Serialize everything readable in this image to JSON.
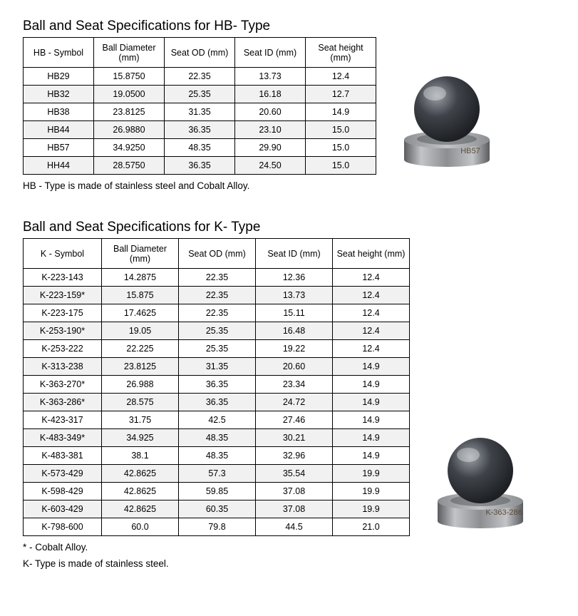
{
  "colors": {
    "text": "#000000",
    "border": "#000000",
    "row_alt_bg": "#f1f1f1",
    "page_bg": "#ffffff",
    "ball_top": "#9aa0a6",
    "ball_mid": "#3f4349",
    "ball_dark": "#1e2024",
    "seat_top": "#c2c4c7",
    "seat_mid": "#8c8e91",
    "seat_dark": "#5a5c5f",
    "label_text": "#5a4a3a"
  },
  "hb": {
    "title": "Ball and Seat Specifications for HB- Type",
    "columns": [
      "HB - Symbol",
      "Ball Diameter (mm)",
      "Seat OD (mm)",
      "Seat ID (mm)",
      "Seat height (mm)"
    ],
    "rows": [
      [
        "HB29",
        "15.8750",
        "22.35",
        "13.73",
        "12.4"
      ],
      [
        "HB32",
        "19.0500",
        "25.35",
        "16.18",
        "12.7"
      ],
      [
        "HB38",
        "23.8125",
        "31.35",
        "20.60",
        "14.9"
      ],
      [
        "HB44",
        "26.9880",
        "36.35",
        "23.10",
        "15.0"
      ],
      [
        "HB57",
        "34.9250",
        "48.35",
        "29.90",
        "15.0"
      ],
      [
        "HH44",
        "28.5750",
        "36.35",
        "24.50",
        "15.0"
      ]
    ],
    "note": "HB - Type is made of stainless steel and Cobalt Alloy.",
    "illus_label": "HB57"
  },
  "k": {
    "title": "Ball and Seat Specifications for K- Type",
    "columns": [
      "K - Symbol",
      "Ball Diameter (mm)",
      "Seat OD (mm)",
      "Seat ID (mm)",
      "Seat height (mm)"
    ],
    "rows": [
      [
        "K-223-143",
        "14.2875",
        "22.35",
        "12.36",
        "12.4"
      ],
      [
        "K-223-159*",
        "15.875",
        "22.35",
        "13.73",
        "12.4"
      ],
      [
        "K-223-175",
        "17.4625",
        "22.35",
        "15.11",
        "12.4"
      ],
      [
        "K-253-190*",
        "19.05",
        "25.35",
        "16.48",
        "12.4"
      ],
      [
        "K-253-222",
        "22.225",
        "25.35",
        "19.22",
        "12.4"
      ],
      [
        "K-313-238",
        "23.8125",
        "31.35",
        "20.60",
        "14.9"
      ],
      [
        "K-363-270*",
        "26.988",
        "36.35",
        "23.34",
        "14.9"
      ],
      [
        "K-363-286*",
        "28.575",
        "36.35",
        "24.72",
        "14.9"
      ],
      [
        "K-423-317",
        "31.75",
        "42.5",
        "27.46",
        "14.9"
      ],
      [
        "K-483-349*",
        "34.925",
        "48.35",
        "30.21",
        "14.9"
      ],
      [
        "K-483-381",
        "38.1",
        "48.35",
        "32.96",
        "14.9"
      ],
      [
        "K-573-429",
        "42.8625",
        "57.3",
        "35.54",
        "19.9"
      ],
      [
        "K-598-429",
        "42.8625",
        "59.85",
        "37.08",
        "19.9"
      ],
      [
        "K-603-429",
        "42.8625",
        "60.35",
        "37.08",
        "19.9"
      ],
      [
        "K-798-600",
        "60.0",
        "79.8",
        "44.5",
        "21.0"
      ]
    ],
    "note1": "* - Cobalt Alloy.",
    "note2": "K- Type is made of stainless steel.",
    "illus_label": "K-363-286"
  }
}
